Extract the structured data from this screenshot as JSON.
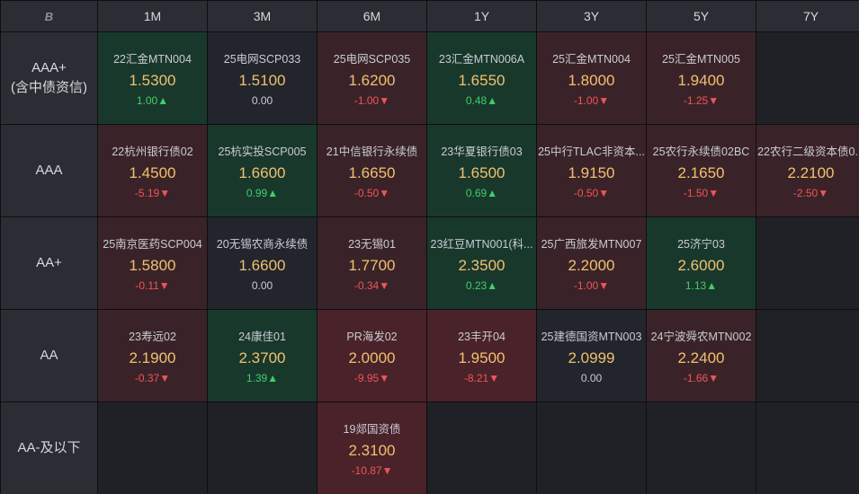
{
  "corner_icon": "bond-logo-icon",
  "corner_text": "B",
  "tenors": [
    "1M",
    "3M",
    "6M",
    "1Y",
    "3Y",
    "5Y",
    "7Y"
  ],
  "ratings": [
    {
      "line1": "AAA+",
      "line2": "(含中债资信)"
    },
    {
      "line1": "AAA",
      "line2": ""
    },
    {
      "line1": "AA+",
      "line2": ""
    },
    {
      "line1": "AA",
      "line2": ""
    },
    {
      "line1": "AA-及以下",
      "line2": ""
    }
  ],
  "cells": [
    [
      {
        "bond": "22汇金MTN004",
        "yield": "1.5300",
        "change": "1.00▲",
        "dir": "up"
      },
      {
        "bond": "25电网SCP033",
        "yield": "1.5100",
        "change": "0.00",
        "dir": "flat"
      },
      {
        "bond": "25电网SCP035",
        "yield": "1.6200",
        "change": "-1.00▼",
        "dir": "down"
      },
      {
        "bond": "23汇金MTN006A",
        "yield": "1.6550",
        "change": "0.48▲",
        "dir": "up"
      },
      {
        "bond": "25汇金MTN004",
        "yield": "1.8000",
        "change": "-1.00▼",
        "dir": "down"
      },
      {
        "bond": "25汇金MTN005",
        "yield": "1.9400",
        "change": "-1.25▼",
        "dir": "down"
      },
      null
    ],
    [
      {
        "bond": "22杭州银行债02",
        "yield": "1.4500",
        "change": "-5.19▼",
        "dir": "down"
      },
      {
        "bond": "25杭实投SCP005",
        "yield": "1.6600",
        "change": "0.99▲",
        "dir": "up"
      },
      {
        "bond": "21中信银行永续债",
        "yield": "1.6650",
        "change": "-0.50▼",
        "dir": "down"
      },
      {
        "bond": "23华夏银行债03",
        "yield": "1.6500",
        "change": "0.69▲",
        "dir": "up"
      },
      {
        "bond": "25中行TLAC非资本...",
        "yield": "1.9150",
        "change": "-0.50▼",
        "dir": "down"
      },
      {
        "bond": "25农行永续债02BC",
        "yield": "2.1650",
        "change": "-1.50▼",
        "dir": "down"
      },
      {
        "bond": "22农行二级资本债0...",
        "yield": "2.2100",
        "change": "-2.50▼",
        "dir": "down"
      }
    ],
    [
      {
        "bond": "25南京医药SCP004",
        "yield": "1.5800",
        "change": "-0.11▼",
        "dir": "down"
      },
      {
        "bond": "20无锡农商永续债",
        "yield": "1.6600",
        "change": "0.00",
        "dir": "flat"
      },
      {
        "bond": "23无锡01",
        "yield": "1.7700",
        "change": "-0.34▼",
        "dir": "down"
      },
      {
        "bond": "23红豆MTN001(科...",
        "yield": "2.3500",
        "change": "0.23▲",
        "dir": "up"
      },
      {
        "bond": "25广西旅发MTN007",
        "yield": "2.2000",
        "change": "-1.00▼",
        "dir": "down"
      },
      {
        "bond": "25济宁03",
        "yield": "2.6000",
        "change": "1.13▲",
        "dir": "up"
      },
      null
    ],
    [
      {
        "bond": "23寿远02",
        "yield": "2.1900",
        "change": "-0.37▼",
        "dir": "down"
      },
      {
        "bond": "24康佳01",
        "yield": "2.3700",
        "change": "1.39▲",
        "dir": "up"
      },
      {
        "bond": "PR海发02",
        "yield": "2.0000",
        "change": "-9.95▼",
        "dir": "down2"
      },
      {
        "bond": "23丰开04",
        "yield": "1.9500",
        "change": "-8.21▼",
        "dir": "down2"
      },
      {
        "bond": "25建德国资MTN003",
        "yield": "2.0999",
        "change": "0.00",
        "dir": "flat"
      },
      {
        "bond": "24宁波舜农MTN002",
        "yield": "2.2400",
        "change": "-1.66▼",
        "dir": "down"
      },
      null
    ],
    [
      null,
      null,
      {
        "bond": "19郯国资债",
        "yield": "2.3100",
        "change": "-10.87▼",
        "dir": "down2"
      },
      null,
      null,
      null,
      null
    ]
  ]
}
